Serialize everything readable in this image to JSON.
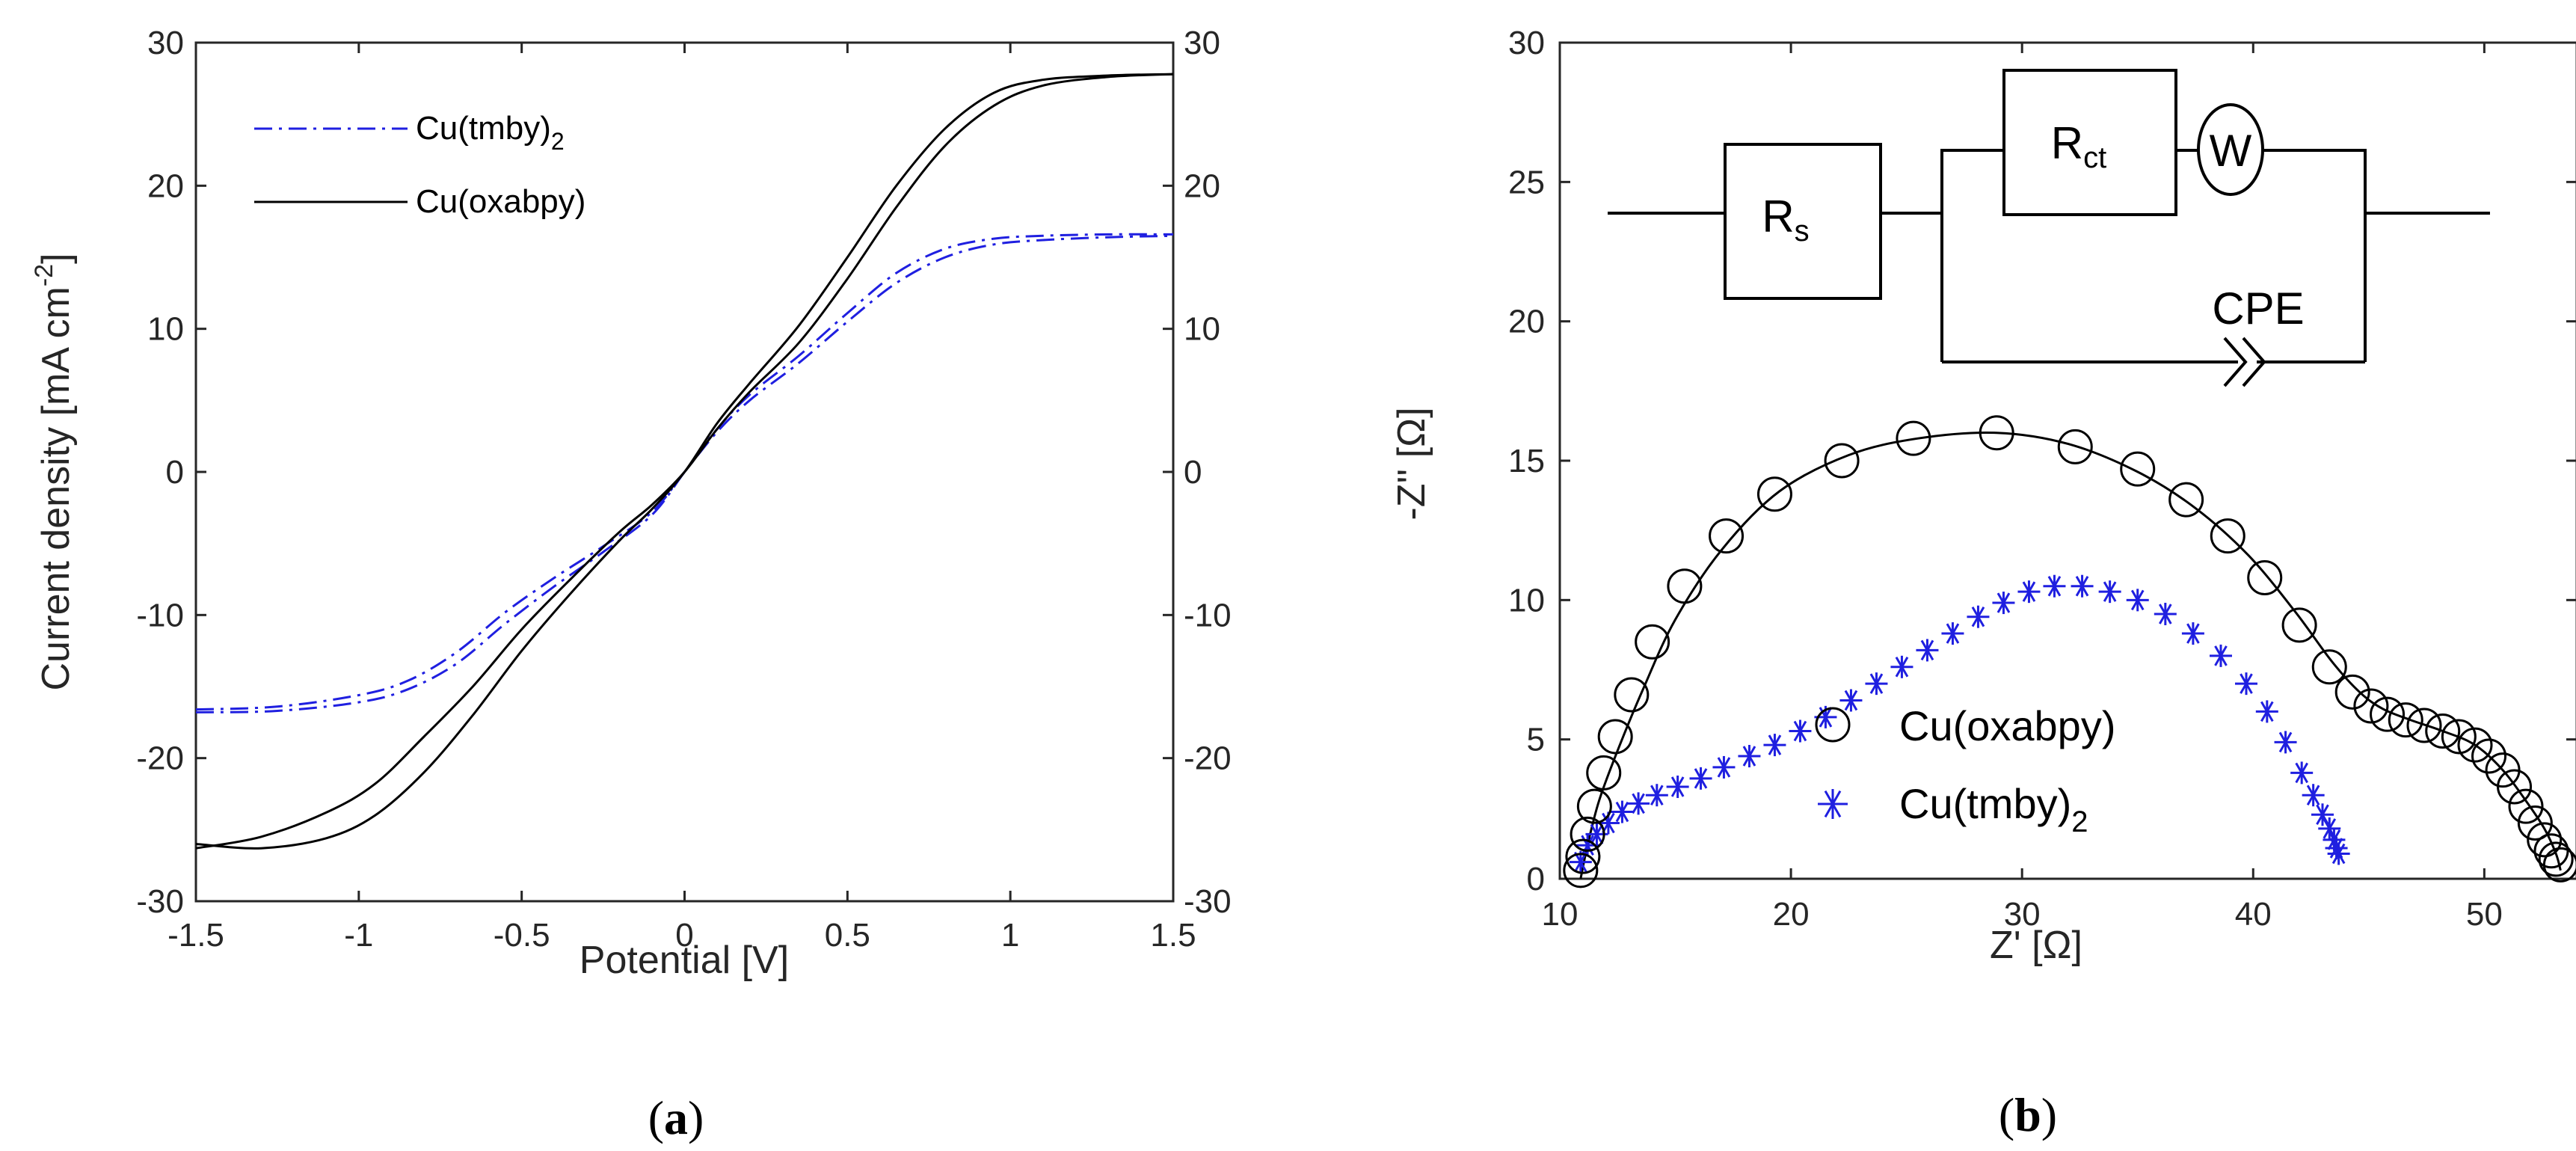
{
  "chart_data": [
    {
      "type": "line",
      "panel_label": "a",
      "xlabel": "Potential [V]",
      "ylabel": "Current density [mA cm",
      "ylabel_sup": "-2",
      "ylabel_close": "]",
      "xlim": [
        -1.5,
        1.5
      ],
      "ylim": [
        -30,
        30
      ],
      "x_ticks": [
        "-1.5",
        "-1",
        "-0.5",
        "0",
        "0.5",
        "1",
        "1.5"
      ],
      "y_ticks": [
        "30",
        "20",
        "10",
        "0",
        "-10",
        "-20",
        "-30"
      ],
      "y2_ticks": [
        "30",
        "20",
        "10",
        "0",
        "-10",
        "-20",
        "-30"
      ],
      "legend_position": "top-left",
      "series": [
        {
          "name": "Cu(tmby)",
          "name_sub": "2",
          "color": "#1f1fe0",
          "style": "dash-dot",
          "x": [
            -1.5,
            -1.25,
            -1.0,
            -0.85,
            -0.7,
            -0.55,
            -0.4,
            -0.25,
            -0.1,
            0.0,
            0.1,
            0.2,
            0.35,
            0.5,
            0.65,
            0.8,
            0.95,
            1.1,
            1.3,
            1.5
          ],
          "forward": [
            -16.6,
            -16.4,
            -15.6,
            -14.6,
            -12.6,
            -9.8,
            -7.4,
            -5.2,
            -2.8,
            0.0,
            2.8,
            5.0,
            7.6,
            10.5,
            13.2,
            15.0,
            15.9,
            16.2,
            16.4,
            16.5
          ],
          "reverse": [
            -16.8,
            -16.7,
            -16.1,
            -15.2,
            -13.4,
            -10.6,
            -8.0,
            -5.6,
            -3.0,
            0.0,
            3.0,
            5.4,
            8.1,
            11.1,
            13.9,
            15.6,
            16.3,
            16.5,
            16.6,
            16.6
          ]
        },
        {
          "name": "Cu(oxabpy)",
          "color": "#000000",
          "style": "solid",
          "x": [
            -1.5,
            -1.3,
            -1.1,
            -0.95,
            -0.8,
            -0.65,
            -0.5,
            -0.35,
            -0.2,
            -0.1,
            0.0,
            0.1,
            0.2,
            0.35,
            0.5,
            0.65,
            0.8,
            0.95,
            1.1,
            1.3,
            1.5
          ],
          "forward": [
            -26.3,
            -25.5,
            -23.8,
            -21.8,
            -18.5,
            -15.0,
            -11.0,
            -7.5,
            -4.2,
            -2.3,
            0.0,
            3.0,
            5.6,
            9.0,
            13.5,
            18.5,
            22.8,
            25.6,
            27.0,
            27.6,
            27.8
          ],
          "reverse": [
            -26.0,
            -26.3,
            -25.6,
            -24.0,
            -21.0,
            -17.0,
            -12.5,
            -8.5,
            -4.8,
            -2.6,
            0.0,
            3.4,
            6.2,
            10.2,
            15.0,
            20.0,
            24.0,
            26.5,
            27.4,
            27.7,
            27.8
          ]
        }
      ]
    },
    {
      "type": "scatter",
      "panel_label": "b",
      "xlabel": "Z' [Ω]",
      "ylabel": "-Z'' [Ω]",
      "xlim": [
        10,
        54
      ],
      "ylim": [
        0,
        30
      ],
      "x_ticks": [
        "10",
        "20",
        "30",
        "40",
        "50"
      ],
      "y_ticks": [
        "30",
        "25",
        "20",
        "15",
        "10",
        "5",
        "0"
      ],
      "legend_position": "bottom-center",
      "series": [
        {
          "name": "Cu(oxabpy)",
          "marker": "circle",
          "color": "#000000",
          "x": [
            10.9,
            11.0,
            11.2,
            11.5,
            11.9,
            12.4,
            13.1,
            14.0,
            15.4,
            17.2,
            19.3,
            22.2,
            25.3,
            28.9,
            32.3,
            35.0,
            37.1,
            38.9,
            40.5,
            42.0,
            43.3,
            44.3,
            45.1,
            45.8,
            46.6,
            47.4,
            48.2,
            48.9,
            49.6,
            50.2,
            50.8,
            51.3,
            51.8,
            52.2,
            52.6,
            52.9,
            53.1,
            53.3
          ],
          "y": [
            0.3,
            0.8,
            1.6,
            2.6,
            3.8,
            5.1,
            6.6,
            8.5,
            10.5,
            12.3,
            13.8,
            15.0,
            15.8,
            16.0,
            15.5,
            14.7,
            13.6,
            12.3,
            10.8,
            9.1,
            7.6,
            6.7,
            6.2,
            5.9,
            5.7,
            5.5,
            5.3,
            5.1,
            4.8,
            4.4,
            3.9,
            3.3,
            2.6,
            2.0,
            1.4,
            1.0,
            0.7,
            0.5
          ]
        },
        {
          "name": "Cu(tmby)",
          "name_sub": "2",
          "marker": "asterisk",
          "color": "#1f1fe0",
          "x": [
            10.9,
            11.2,
            11.6,
            12.1,
            12.7,
            13.4,
            14.2,
            15.1,
            16.1,
            17.1,
            18.2,
            19.3,
            20.4,
            21.5,
            22.6,
            23.7,
            24.8,
            25.9,
            27.0,
            28.1,
            29.2,
            30.3,
            31.4,
            32.6,
            33.8,
            35.0,
            36.2,
            37.4,
            38.6,
            39.7,
            40.6,
            41.4,
            42.1,
            42.6,
            43.0,
            43.3,
            43.5,
            43.6,
            43.7
          ],
          "y": [
            0.6,
            1.2,
            1.6,
            2.0,
            2.4,
            2.7,
            3.0,
            3.3,
            3.6,
            4.0,
            4.4,
            4.8,
            5.3,
            5.8,
            6.4,
            7.0,
            7.6,
            8.2,
            8.8,
            9.4,
            9.9,
            10.3,
            10.5,
            10.5,
            10.3,
            10.0,
            9.5,
            8.8,
            8.0,
            7.0,
            6.0,
            4.9,
            3.8,
            3.0,
            2.3,
            1.8,
            1.4,
            1.1,
            0.9
          ]
        }
      ],
      "fit_curve": {
        "color": "#000000",
        "x": [
          10.9,
          11.2,
          11.7,
          12.5,
          13.6,
          15.0,
          17.0,
          19.5,
          22.5,
          25.5,
          28.9,
          32.0,
          35.0,
          37.5,
          39.8,
          41.8,
          43.4,
          44.6,
          45.6,
          46.8,
          48.2,
          49.6,
          50.8,
          51.8,
          52.6,
          53.1,
          53.3
        ],
        "y": [
          0.0,
          1.2,
          2.8,
          4.6,
          6.8,
          9.3,
          11.8,
          13.9,
          15.2,
          15.8,
          16.0,
          15.6,
          14.6,
          13.3,
          11.6,
          9.6,
          7.8,
          6.7,
          6.1,
          5.7,
          5.3,
          4.8,
          3.9,
          2.8,
          1.8,
          0.9,
          0.3
        ]
      },
      "inset_circuit": {
        "rs_label": "R",
        "rs_sub": "s",
        "rct_label": "R",
        "rct_sub": "ct",
        "w_label": "W",
        "cpe_label": "CPE"
      }
    }
  ]
}
